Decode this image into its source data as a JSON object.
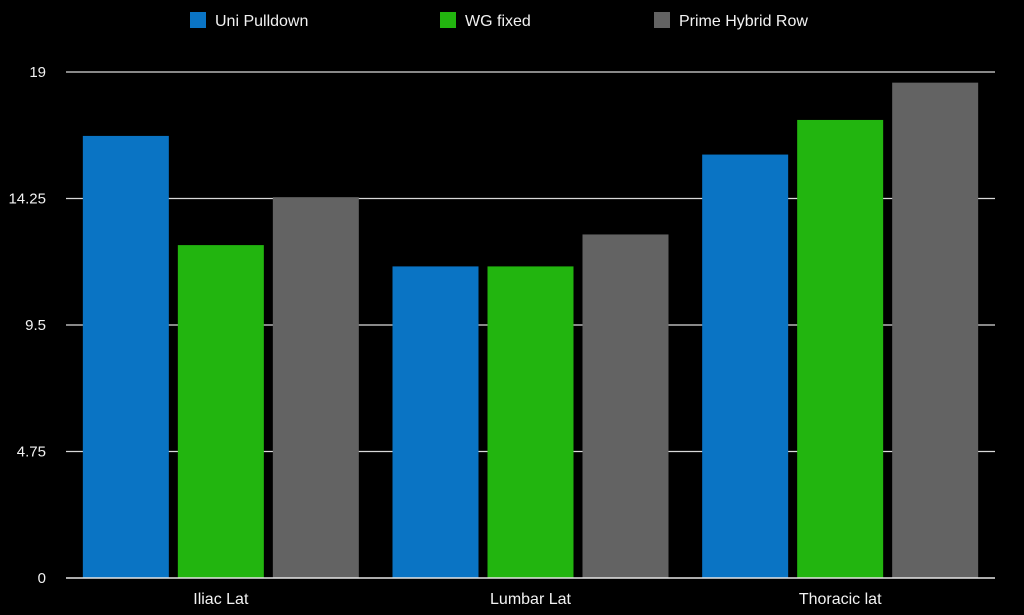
{
  "chart_data": {
    "type": "bar",
    "title": "",
    "xlabel": "",
    "ylabel": "",
    "categories": [
      "Iliac Lat",
      "Lumbar Lat",
      "Thoracic lat"
    ],
    "series": [
      {
        "name": "Uni Pulldown",
        "color": "#0a74c4",
        "values": [
          16.6,
          11.7,
          15.9
        ]
      },
      {
        "name": "WG fixed",
        "color": "#22b50f",
        "values": [
          12.5,
          11.7,
          17.2
        ]
      },
      {
        "name": "Prime Hybrid Row",
        "color": "#636363",
        "values": [
          14.3,
          12.9,
          18.6
        ]
      }
    ],
    "ylim": [
      0,
      19
    ],
    "yticks": [
      0,
      4.75,
      9.5,
      14.25,
      19
    ],
    "ytick_labels": [
      "0",
      "4.75",
      "9.5",
      "14.25",
      "19"
    ],
    "grid": true,
    "legend_position": "top-center",
    "background": "#000000",
    "grid_color": "#d9d9d9",
    "text_color": "#f2f2f2"
  }
}
